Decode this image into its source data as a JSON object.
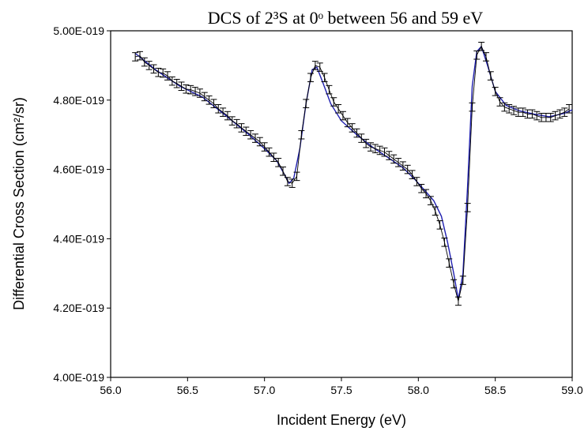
{
  "chart_data": {
    "type": "line",
    "title": "DCS of 2³S at 0ᵒ between 56 and 59 eV",
    "xlabel": "Incident Energy (eV)",
    "ylabel": "Differential Cross Section (cm²/sr)",
    "xlim": [
      56.0,
      59.0
    ],
    "ylim": [
      4e-19,
      5e-19
    ],
    "x_ticks": [
      56.0,
      56.5,
      57.0,
      57.5,
      58.0,
      58.5,
      59.0
    ],
    "x_tick_labels": [
      "56.0",
      "56.5",
      "57.0",
      "57.5",
      "58.0",
      "58.5",
      "59.0"
    ],
    "y_ticks": [
      4e-19,
      4.2e-19,
      4.4e-19,
      4.6e-19,
      4.8e-19,
      5e-19
    ],
    "y_tick_labels": [
      "4.00E-019",
      "4.20E-019",
      "4.40E-019",
      "4.60E-019",
      "4.80E-019",
      "5.00E-019"
    ],
    "grid": false,
    "colors": {
      "data": "#000000",
      "fit": "#1f1fb0"
    },
    "series": [
      {
        "kind": "data-with-error-bars",
        "x": [
          56.16,
          56.19,
          56.22,
          56.25,
          56.28,
          56.31,
          56.34,
          56.37,
          56.4,
          56.43,
          56.46,
          56.49,
          56.52,
          56.55,
          56.58,
          56.61,
          56.64,
          56.67,
          56.7,
          56.73,
          56.76,
          56.79,
          56.82,
          56.85,
          56.88,
          56.91,
          56.94,
          56.97,
          57.0,
          57.03,
          57.06,
          57.09,
          57.12,
          57.15,
          57.18,
          57.21,
          57.24,
          57.27,
          57.3,
          57.33,
          57.36,
          57.39,
          57.42,
          57.45,
          57.48,
          57.51,
          57.54,
          57.57,
          57.6,
          57.63,
          57.66,
          57.69,
          57.72,
          57.75,
          57.78,
          57.81,
          57.84,
          57.87,
          57.9,
          57.93,
          57.96,
          57.99,
          58.02,
          58.05,
          58.08,
          58.11,
          58.14,
          58.17,
          58.2,
          58.23,
          58.26,
          58.29,
          58.32,
          58.35,
          58.38,
          58.41,
          58.44,
          58.47,
          58.5,
          58.53,
          58.56,
          58.59,
          58.62,
          58.65,
          58.68,
          58.71,
          58.74,
          58.77,
          58.8,
          58.83,
          58.86,
          58.89,
          58.92,
          58.95,
          58.98
        ],
        "y": [
          4.925e-19,
          4.928e-19,
          4.91e-19,
          4.9e-19,
          4.89e-19,
          4.88e-19,
          4.878e-19,
          4.87e-19,
          4.855e-19,
          4.848e-19,
          4.84e-19,
          4.832e-19,
          4.83e-19,
          4.825e-19,
          4.82e-19,
          4.81e-19,
          4.8e-19,
          4.79e-19,
          4.775e-19,
          4.765e-19,
          4.755e-19,
          4.74e-19,
          4.732e-19,
          4.72e-19,
          4.71e-19,
          4.7e-19,
          4.69e-19,
          4.68e-19,
          4.665e-19,
          4.65e-19,
          4.635e-19,
          4.62e-19,
          4.595e-19,
          4.565e-19,
          4.56e-19,
          4.58e-19,
          4.7e-19,
          4.79e-19,
          4.865e-19,
          4.9e-19,
          4.895e-19,
          4.865e-19,
          4.83e-19,
          4.795e-19,
          4.775e-19,
          4.755e-19,
          4.735e-19,
          4.72e-19,
          4.705e-19,
          4.69e-19,
          4.675e-19,
          4.665e-19,
          4.66e-19,
          4.655e-19,
          4.65e-19,
          4.64e-19,
          4.63e-19,
          4.62e-19,
          4.61e-19,
          4.6e-19,
          4.585e-19,
          4.565e-19,
          4.545e-19,
          4.53e-19,
          4.51e-19,
          4.48e-19,
          4.44e-19,
          4.39e-19,
          4.33e-19,
          4.27e-19,
          4.22e-19,
          4.28e-19,
          4.49e-19,
          4.78e-19,
          4.93e-19,
          4.955e-19,
          4.925e-19,
          4.87e-19,
          4.825e-19,
          4.795e-19,
          4.78e-19,
          4.775e-19,
          4.77e-19,
          4.765e-19,
          4.765e-19,
          4.76e-19,
          4.76e-19,
          4.755e-19,
          4.75e-19,
          4.75e-19,
          4.75e-19,
          4.755e-19,
          4.76e-19,
          4.765e-19,
          4.775e-19
        ],
        "error": 1.2e-21
      },
      {
        "kind": "fit",
        "x": [
          56.16,
          56.3,
          56.45,
          56.6,
          56.75,
          56.9,
          57.0,
          57.08,
          57.13,
          57.16,
          57.19,
          57.23,
          57.27,
          57.31,
          57.34,
          57.38,
          57.43,
          57.5,
          57.6,
          57.7,
          57.8,
          57.9,
          57.98,
          58.05,
          58.1,
          58.15,
          58.19,
          58.23,
          58.26,
          58.29,
          58.32,
          58.35,
          58.38,
          58.41,
          58.45,
          58.5,
          58.57,
          58.65,
          58.75,
          58.85,
          58.95,
          59.0
        ],
        "y": [
          4.935e-19,
          4.885e-19,
          4.84e-19,
          4.808e-19,
          4.755e-19,
          4.7e-19,
          4.66e-19,
          4.625e-19,
          4.585e-19,
          4.56e-19,
          4.575e-19,
          4.66e-19,
          4.79e-19,
          4.888e-19,
          4.895e-19,
          4.85e-19,
          4.79e-19,
          4.74e-19,
          4.7e-19,
          4.665e-19,
          4.635e-19,
          4.605e-19,
          4.57e-19,
          4.535e-19,
          4.51e-19,
          4.465e-19,
          4.39e-19,
          4.3e-19,
          4.225e-19,
          4.3e-19,
          4.55e-19,
          4.84e-19,
          4.94e-19,
          4.955e-19,
          4.9e-19,
          4.825e-19,
          4.785e-19,
          4.77e-19,
          4.76e-19,
          4.752e-19,
          4.762e-19,
          4.772e-19
        ]
      }
    ]
  }
}
